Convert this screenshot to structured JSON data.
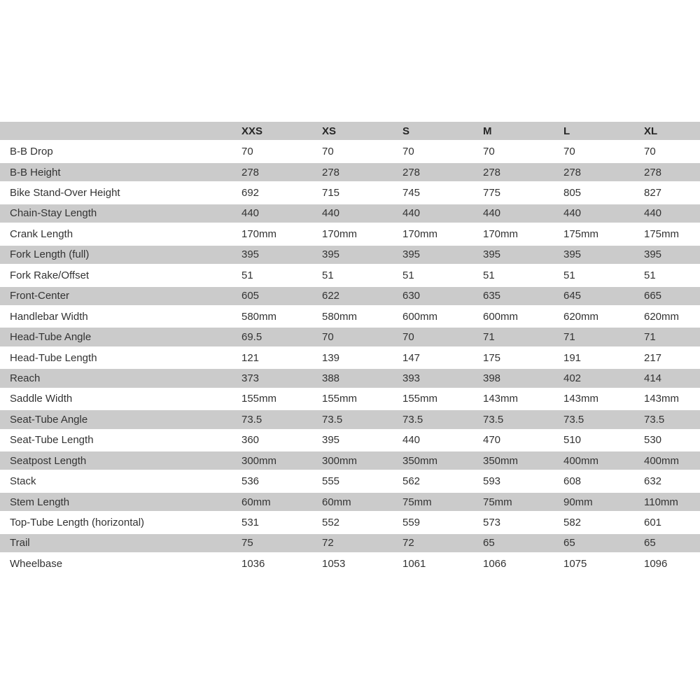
{
  "colors": {
    "row_alt_bg": "#cbcbcb",
    "row_bg": "#ffffff",
    "text": "#333333",
    "header_text": "#262626"
  },
  "chart_data": {
    "type": "table",
    "title": "",
    "columns": [
      "",
      "XXS",
      "XS",
      "S",
      "M",
      "L",
      "XL"
    ],
    "rows": [
      {
        "label": "B-B Drop",
        "values": [
          "70",
          "70",
          "70",
          "70",
          "70",
          "70"
        ]
      },
      {
        "label": "B-B Height",
        "values": [
          "278",
          "278",
          "278",
          "278",
          "278",
          "278"
        ]
      },
      {
        "label": "Bike Stand-Over Height",
        "values": [
          "692",
          "715",
          "745",
          "775",
          "805",
          "827"
        ]
      },
      {
        "label": "Chain-Stay Length",
        "values": [
          "440",
          "440",
          "440",
          "440",
          "440",
          "440"
        ]
      },
      {
        "label": "Crank Length",
        "values": [
          "170mm",
          "170mm",
          "170mm",
          "170mm",
          "175mm",
          "175mm"
        ]
      },
      {
        "label": "Fork Length (full)",
        "values": [
          "395",
          "395",
          "395",
          "395",
          "395",
          "395"
        ]
      },
      {
        "label": "Fork Rake/Offset",
        "values": [
          "51",
          "51",
          "51",
          "51",
          "51",
          "51"
        ]
      },
      {
        "label": "Front-Center",
        "values": [
          "605",
          "622",
          "630",
          "635",
          "645",
          "665"
        ]
      },
      {
        "label": "Handlebar Width",
        "values": [
          "580mm",
          "580mm",
          "600mm",
          "600mm",
          "620mm",
          "620mm"
        ]
      },
      {
        "label": "Head-Tube Angle",
        "values": [
          "69.5",
          "70",
          "70",
          "71",
          "71",
          "71"
        ]
      },
      {
        "label": "Head-Tube Length",
        "values": [
          "121",
          "139",
          "147",
          "175",
          "191",
          "217"
        ]
      },
      {
        "label": "Reach",
        "values": [
          "373",
          "388",
          "393",
          "398",
          "402",
          "414"
        ]
      },
      {
        "label": "Saddle Width",
        "values": [
          "155mm",
          "155mm",
          "155mm",
          "143mm",
          "143mm",
          "143mm"
        ]
      },
      {
        "label": "Seat-Tube Angle",
        "values": [
          "73.5",
          "73.5",
          "73.5",
          "73.5",
          "73.5",
          "73.5"
        ]
      },
      {
        "label": "Seat-Tube Length",
        "values": [
          "360",
          "395",
          "440",
          "470",
          "510",
          "530"
        ]
      },
      {
        "label": "Seatpost Length",
        "values": [
          "300mm",
          "300mm",
          "350mm",
          "350mm",
          "400mm",
          "400mm"
        ]
      },
      {
        "label": "Stack",
        "values": [
          "536",
          "555",
          "562",
          "593",
          "608",
          "632"
        ]
      },
      {
        "label": "Stem Length",
        "values": [
          "60mm",
          "60mm",
          "75mm",
          "75mm",
          "90mm",
          "110mm"
        ]
      },
      {
        "label": "Top-Tube Length (horizontal)",
        "values": [
          "531",
          "552",
          "559",
          "573",
          "582",
          "601"
        ]
      },
      {
        "label": "Trail",
        "values": [
          "75",
          "72",
          "72",
          "65",
          "65",
          "65"
        ]
      },
      {
        "label": "Wheelbase",
        "values": [
          "1036",
          "1053",
          "1061",
          "1066",
          "1075",
          "1096"
        ]
      }
    ]
  }
}
